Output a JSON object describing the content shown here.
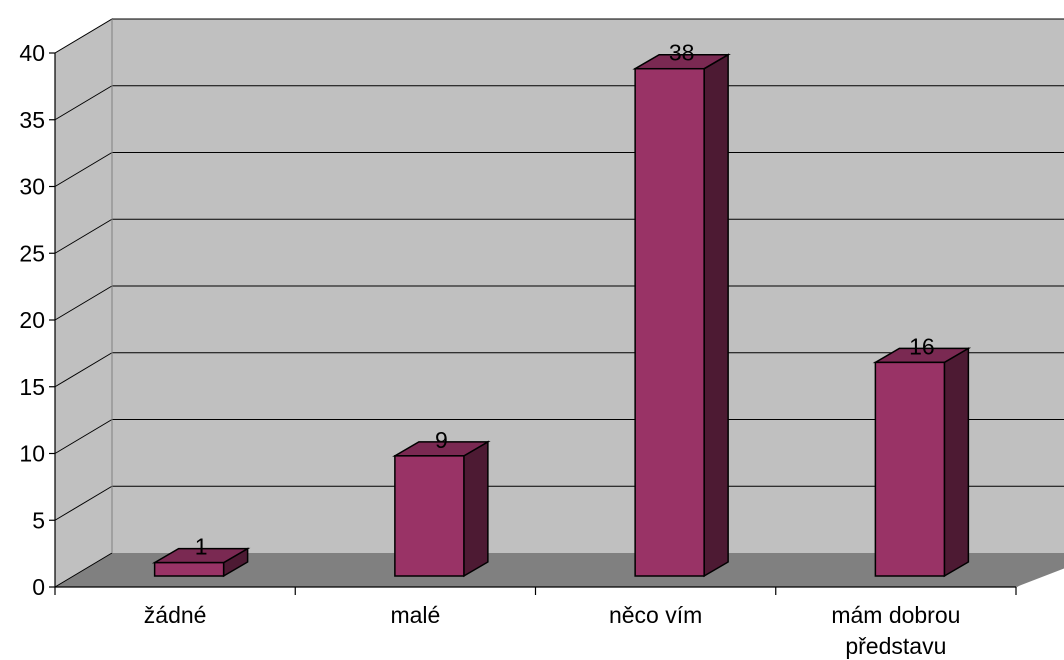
{
  "chart_data": {
    "type": "bar",
    "style": "3d-column",
    "title": "",
    "xlabel": "",
    "ylabel": "",
    "categories": [
      "žádné",
      "malé",
      "něco vím",
      "mám dobrou\npředstavu"
    ],
    "values": [
      1,
      9,
      38,
      16
    ],
    "data_labels": [
      "1",
      "9",
      "38",
      "16"
    ],
    "ylim": [
      0,
      40
    ],
    "ytick_step": 5,
    "yticks": [
      "0",
      "5",
      "10",
      "15",
      "20",
      "25",
      "30",
      "35",
      "40"
    ],
    "grid": true,
    "legend": "none",
    "colors": {
      "bar_front": "#993366",
      "bar_top": "#7a2952",
      "bar_side": "#4d1a33",
      "back_wall": "#c0c0c0",
      "side_wall": "#c0c0c0",
      "floor": "#808080",
      "gridline": "#000000"
    }
  }
}
